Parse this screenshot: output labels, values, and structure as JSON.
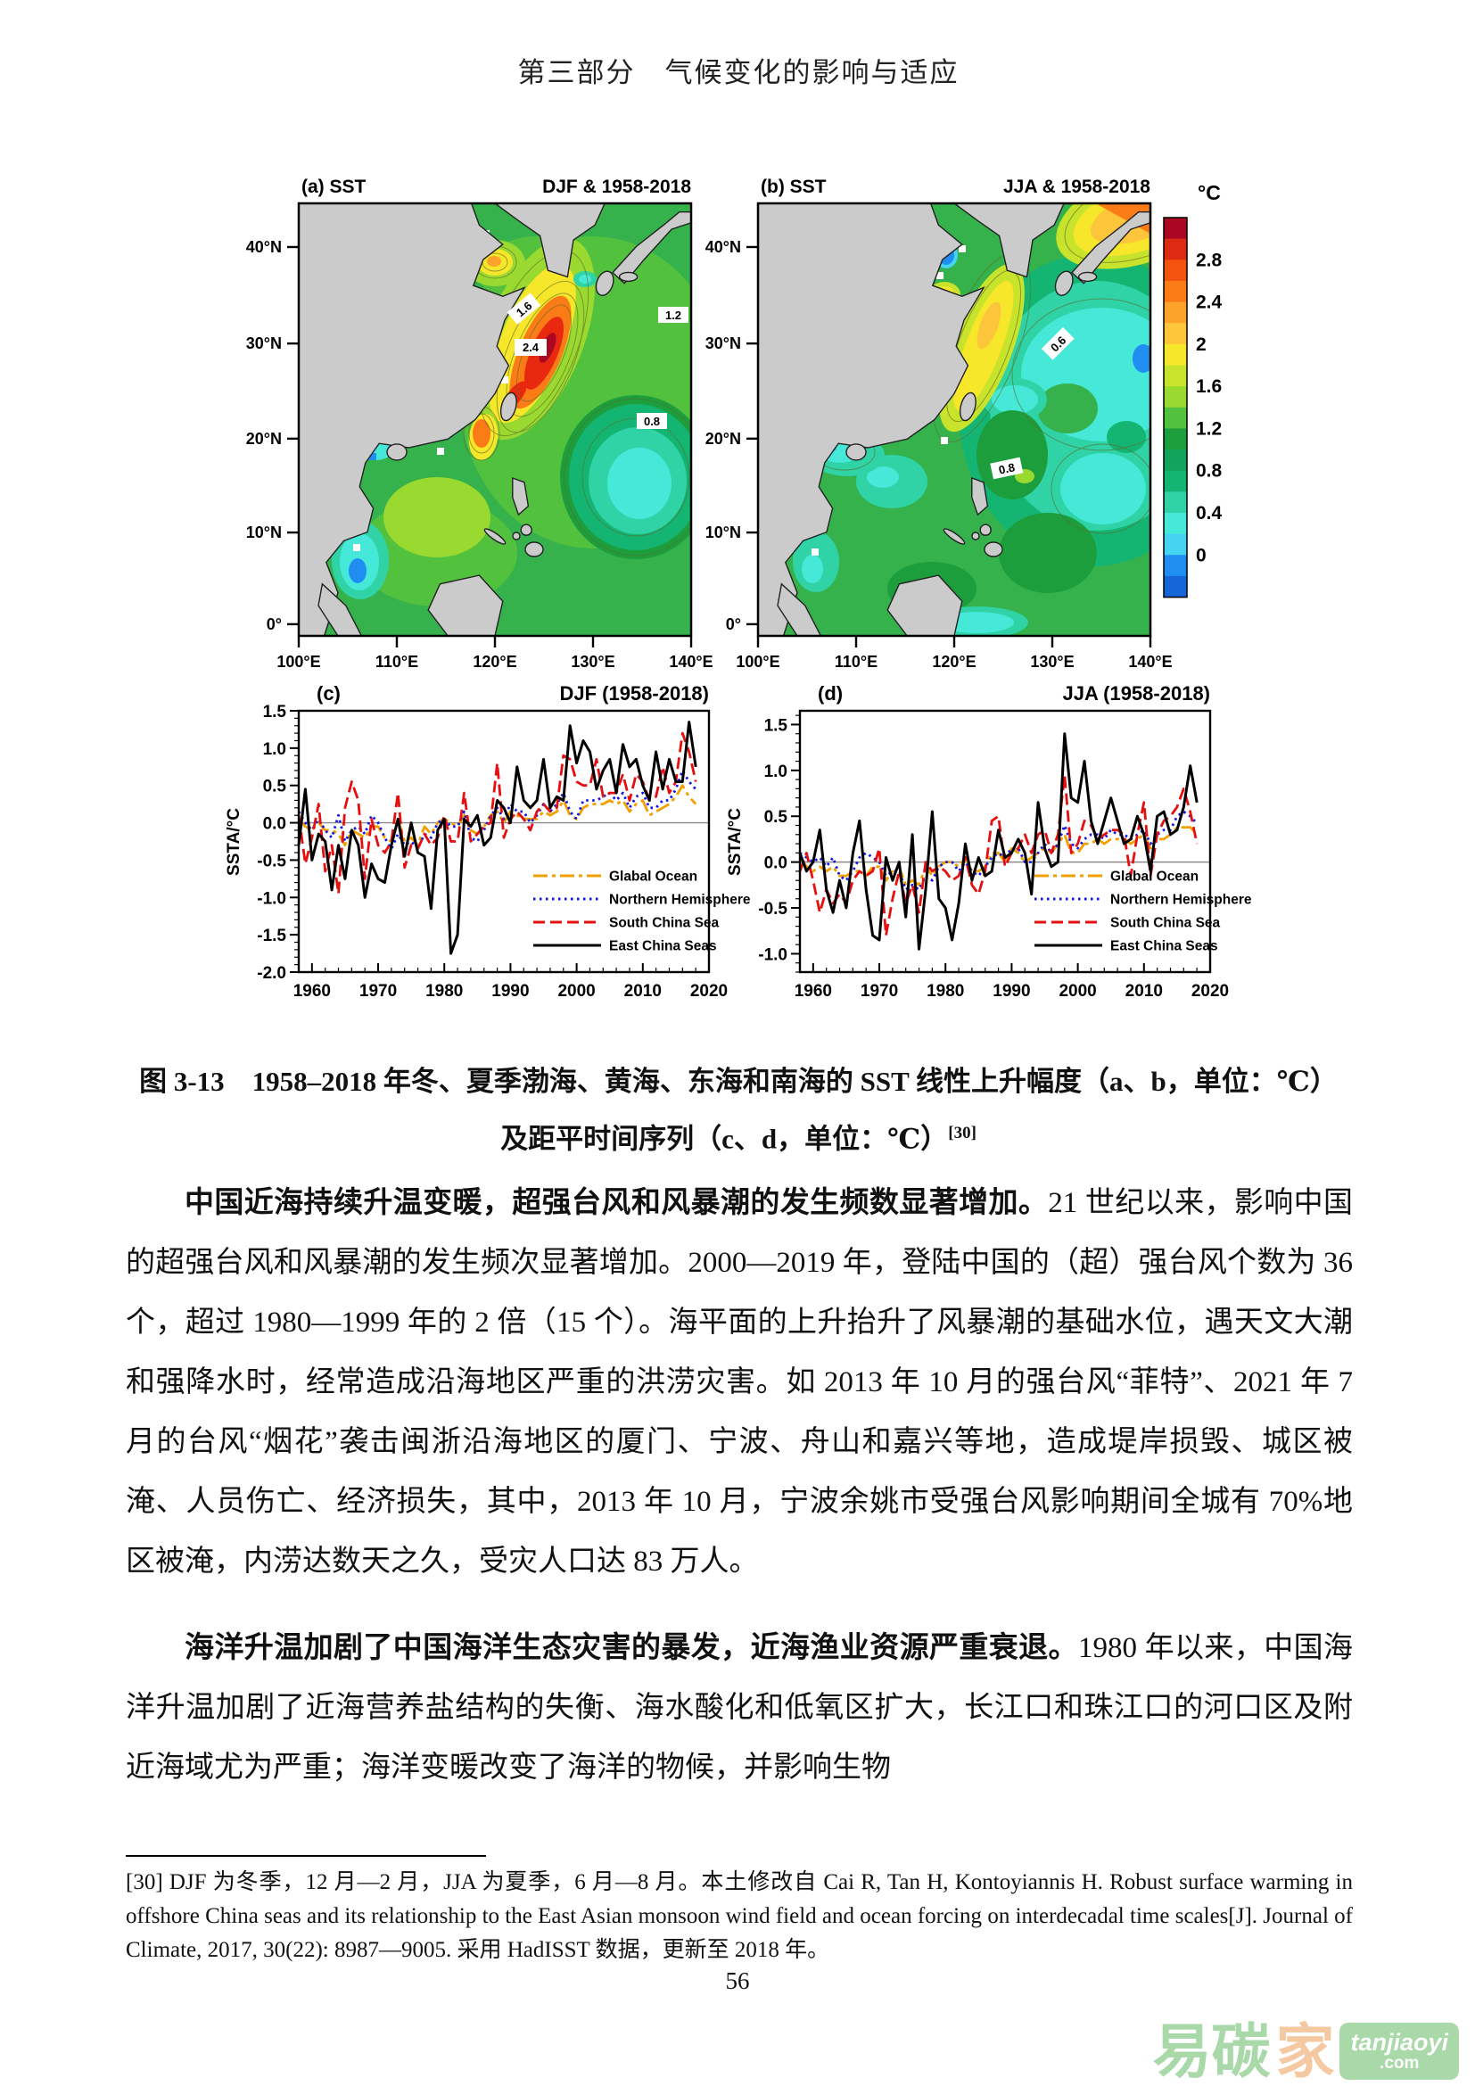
{
  "header": {
    "text": "第三部分　气候变化的影响与适应"
  },
  "figure": {
    "map_a": {
      "label": "(a) SST",
      "season": "DJF & 1958-2018",
      "contours": [
        "1.6",
        "2.4",
        "1.2",
        "0.8"
      ]
    },
    "map_b": {
      "label": "(b) SST",
      "season": "JJA & 1958-2018",
      "contours": [
        "0.6",
        "0.8"
      ]
    },
    "lat_ticks": [
      "40°N",
      "30°N",
      "20°N",
      "10°N",
      "0°"
    ],
    "lon_ticks": [
      "100°E",
      "110°E",
      "120°E",
      "130°E",
      "140°E"
    ],
    "colorbar": {
      "unit": "°C",
      "labels": [
        "2.8",
        "2.4",
        "2",
        "1.6",
        "1.2",
        "0.8",
        "0.4",
        "0"
      ],
      "colors": [
        "#aa0822",
        "#dd2a12",
        "#f4530e",
        "#fb7b17",
        "#fca32b",
        "#fdc53a",
        "#f7e72b",
        "#c8e32c",
        "#9ad92f",
        "#52c13e",
        "#1d9e3d",
        "#12a45c",
        "#14b573",
        "#2fd3a6",
        "#46e8d8",
        "#45d3f2",
        "#1f8ef0",
        "#1565d8"
      ]
    }
  },
  "chart_data": [
    {
      "type": "line",
      "panel_label": "(c)",
      "title": "DJF (1958-2018)",
      "ylabel": "SSTA/°C",
      "x_start": 1958,
      "xlim": [
        1958,
        2020
      ],
      "ylim": [
        -2.0,
        1.5
      ],
      "x_ticks": [
        1960,
        1970,
        1980,
        1990,
        2000,
        2010,
        2020
      ],
      "y_ticks": [
        1.5,
        1.0,
        0.5,
        0.0,
        -0.5,
        -1.0,
        -1.5,
        -2.0
      ],
      "legend": [
        {
          "name": "Glabal Ocean",
          "color": "#f0a000",
          "style": "dashdot"
        },
        {
          "name": "Northern Hemisphere",
          "color": "#1414e6",
          "style": "dotted"
        },
        {
          "name": "South China Sea",
          "color": "#e60f0f",
          "style": "dashed"
        },
        {
          "name": "East China Seas",
          "color": "#000000",
          "style": "solid"
        }
      ],
      "series": [
        {
          "name": "Glabal Ocean",
          "values": [
            0.05,
            -0.05,
            -0.1,
            0,
            -0.1,
            -0.1,
            -0.15,
            -0.3,
            -0.1,
            -0.15,
            -0.2,
            -0.05,
            -0.05,
            -0.2,
            -0.25,
            0.05,
            -0.25,
            -0.2,
            -0.3,
            -0.05,
            -0.15,
            0,
            0.05,
            0,
            -0.05,
            0.1,
            -0.1,
            -0.15,
            -0.05,
            0.1,
            0.15,
            0,
            0.15,
            0.1,
            0.05,
            0.05,
            0.05,
            0.15,
            0.1,
            0.15,
            0.3,
            0.1,
            0.05,
            0.2,
            0.25,
            0.25,
            0.25,
            0.3,
            0.25,
            0.3,
            0.15,
            0.25,
            0.3,
            0.1,
            0.15,
            0.2,
            0.25,
            0.35,
            0.5,
            0.35,
            0.25
          ]
        },
        {
          "name": "Northern Hemisphere",
          "values": [
            0.15,
            0,
            -0.1,
            0.05,
            -0.1,
            -0.2,
            0.1,
            -0.25,
            -0.1,
            -0.05,
            -0.15,
            0.1,
            0,
            -0.2,
            -0.35,
            -0.15,
            -0.3,
            -0.25,
            -0.35,
            -0.15,
            -0.2,
            0,
            0.05,
            -0.05,
            -0.05,
            0.15,
            -0.2,
            -0.25,
            -0.1,
            0.1,
            0.2,
            0.05,
            0.25,
            0.15,
            0.15,
            0,
            0.1,
            0.25,
            0.15,
            0.25,
            0.4,
            0.15,
            0.05,
            0.3,
            0.3,
            0.3,
            0.35,
            0.4,
            0.3,
            0.4,
            0.2,
            0.35,
            0.4,
            0.2,
            0.2,
            0.3,
            0.3,
            0.45,
            0.7,
            0.55,
            0.45
          ]
        },
        {
          "name": "South China Sea",
          "values": [
            0.1,
            -0.55,
            -0.2,
            0.25,
            -0.65,
            -0.3,
            -0.95,
            0.2,
            0.55,
            0.3,
            -0.75,
            0.05,
            -0.3,
            -0.4,
            -0.25,
            0.4,
            -0.6,
            -0.3,
            -0.35,
            -0.15,
            -0.3,
            -0.2,
            0.1,
            -0.25,
            -0.25,
            0.4,
            -0.25,
            -0.15,
            -0.05,
            0,
            0.8,
            -0.2,
            0.05,
            0.15,
            0.05,
            -0.1,
            0.15,
            0.25,
            0.15,
            0.2,
            0.9,
            0.85,
            0.55,
            0.5,
            0.5,
            0.85,
            0.35,
            0.4,
            0.4,
            0.65,
            0.3,
            0.65,
            0.55,
            0.3,
            0.35,
            0.75,
            0.4,
            0.55,
            1.2,
            0.95,
            0.55
          ]
        },
        {
          "name": "East China Seas",
          "values": [
            -0.3,
            0.45,
            -0.5,
            -0.15,
            -0.25,
            -0.9,
            -0.3,
            -0.75,
            -0.1,
            -0.3,
            -1.0,
            -0.55,
            -0.75,
            -0.8,
            -0.3,
            0.05,
            -0.45,
            0,
            -0.4,
            -0.45,
            -1.15,
            -0.1,
            0.05,
            -1.75,
            -1.5,
            0.05,
            -0.05,
            0.1,
            -0.3,
            -0.2,
            0.3,
            0.2,
            0,
            0.75,
            0.3,
            0.2,
            0.3,
            0.85,
            0.2,
            0.35,
            0.3,
            1.3,
            0.8,
            1.1,
            0.95,
            0.45,
            0.7,
            0.85,
            0.4,
            1.05,
            0.75,
            0.85,
            0.5,
            0.3,
            0.95,
            0.45,
            0.85,
            0.55,
            0.55,
            1.35,
            0.75
          ]
        }
      ]
    },
    {
      "type": "line",
      "panel_label": "(d)",
      "title": "JJA (1958-2018)",
      "ylabel": "SSTA/°C",
      "x_start": 1958,
      "xlim": [
        1958,
        2020
      ],
      "ylim": [
        -1.2,
        1.65
      ],
      "x_ticks": [
        1960,
        1970,
        1980,
        1990,
        2000,
        2010,
        2020
      ],
      "y_ticks": [
        1.5,
        1.0,
        0.5,
        0.0,
        -0.5,
        -1.0
      ],
      "legend": [
        {
          "name": "Glabal Ocean",
          "color": "#f0a000",
          "style": "dashdot"
        },
        {
          "name": "Northern Hemisphere",
          "color": "#1414e6",
          "style": "dotted"
        },
        {
          "name": "South China Sea",
          "color": "#e60f0f",
          "style": "dashed"
        },
        {
          "name": "East China Seas",
          "color": "#000000",
          "style": "solid"
        }
      ],
      "series": [
        {
          "name": "Glabal Ocean",
          "values": [
            0.05,
            -0.05,
            -0.1,
            -0.05,
            -0.1,
            -0.05,
            -0.15,
            -0.15,
            -0.1,
            -0.1,
            -0.15,
            -0.05,
            -0.05,
            -0.2,
            -0.1,
            -0.05,
            -0.25,
            -0.2,
            -0.25,
            -0.05,
            -0.15,
            -0.05,
            0,
            0,
            -0.05,
            0.05,
            -0.1,
            -0.1,
            -0.05,
            0.1,
            0.1,
            0,
            0.15,
            0.1,
            0,
            0.05,
            0.1,
            0.15,
            0.1,
            0.2,
            0.3,
            0.1,
            0.1,
            0.2,
            0.2,
            0.25,
            0.2,
            0.25,
            0.25,
            0.25,
            0.2,
            0.25,
            0.3,
            0.15,
            0.25,
            0.25,
            0.3,
            0.38,
            0.38,
            0.38,
            0.3
          ]
        },
        {
          "name": "Northern Hemisphere",
          "values": [
            0.1,
            0.05,
            0,
            0.05,
            -0.05,
            0.05,
            -0.15,
            -0.2,
            -0.1,
            0.05,
            0.1,
            0.05,
            0,
            -0.15,
            -0.1,
            -0.1,
            -0.3,
            -0.25,
            -0.3,
            -0.15,
            -0.2,
            -0.05,
            0,
            0,
            -0.1,
            0,
            -0.1,
            -0.15,
            -0.05,
            0.05,
            0.1,
            0.05,
            0.15,
            0.15,
            0,
            0,
            0.1,
            0.2,
            0.1,
            0.2,
            0.4,
            0.2,
            0.15,
            0.25,
            0.3,
            0.3,
            0.25,
            0.35,
            0.3,
            0.3,
            0.25,
            0.3,
            0.35,
            0.2,
            0.3,
            0.35,
            0.35,
            0.5,
            0.55,
            0.5,
            0.42
          ]
        },
        {
          "name": "South China Sea",
          "values": [
            -0.1,
            0.1,
            -0.2,
            -0.55,
            -0.3,
            -0.45,
            -0.35,
            -0.45,
            -0.2,
            -0.1,
            -0.15,
            -0.1,
            0.15,
            -0.8,
            -0.4,
            -0.1,
            -0.45,
            -0.25,
            -0.55,
            0,
            -0.1,
            -0.05,
            -0.1,
            -0.2,
            -0.15,
            0.05,
            -0.25,
            -0.35,
            -0.1,
            0.45,
            0.5,
            -0.05,
            0.1,
            0.15,
            0.3,
            0.1,
            0.3,
            0.35,
            0.1,
            0.3,
            0.95,
            0.1,
            0.2,
            0.45,
            0.4,
            0.25,
            0.3,
            0.35,
            0.35,
            0.3,
            -0.15,
            0.3,
            0.65,
            -0.15,
            0.3,
            0.45,
            0.5,
            0.6,
            0.8,
            0.55,
            0.2
          ]
        },
        {
          "name": "East China Seas",
          "values": [
            0.1,
            -0.1,
            0,
            0.35,
            -0.3,
            -0.55,
            -0.2,
            -0.5,
            0.1,
            0.45,
            -0.3,
            -0.8,
            -0.85,
            0.05,
            -0.2,
            0,
            -0.6,
            0.3,
            -0.95,
            -0.3,
            0.55,
            -0.4,
            -0.5,
            -0.85,
            -0.45,
            0.2,
            -0.2,
            0.05,
            -0.15,
            -0.1,
            0.35,
            0.05,
            0.1,
            0.25,
            0.1,
            -0.35,
            0.65,
            0.15,
            -0.05,
            0,
            1.4,
            0.7,
            0.65,
            1.1,
            0.45,
            0.2,
            0.45,
            0.7,
            0.45,
            0.2,
            0.25,
            0.5,
            0.3,
            -0.1,
            0.5,
            0.55,
            0.3,
            0.35,
            0.6,
            1.05,
            0.65
          ]
        }
      ]
    }
  ],
  "caption": {
    "line1": "图 3-13　1958–2018 年冬、夏季渤海、黄海、东海和南海的 SST 线性上升幅度（a、b，单位：℃）",
    "line2": "及距平时间序列（c、d，单位：℃）",
    "ref": "[30]"
  },
  "paragraphs": [
    {
      "segments": [
        {
          "text": "中国近海持续升温变暖，超强台风和风暴潮的发生频数显著增加。",
          "bold": true
        },
        {
          "text": "21 世纪以来，影响中国的超强台风和风暴潮的发生频次显著增加。2000—2019 年，登陆中国的（超）强台风个数为 36 个，超过 1980—1999 年的 2 倍（15 个）。海平面的上升抬升了风暴潮的基础水位，遇天文大潮和强降水时，经常造成沿海地区严重的洪涝灾害。如 2013 年 10 月的强台风“菲特”、2021 年 7 月的台风“烟花”袭击闽浙沿海地区的厦门、宁波、舟山和嘉兴等地，造成堤岸损毁、城区被淹、人员伤亡、经济损失，其中，2013 年 10 月，宁波余姚市受强台风影响期间全城有 70%地区被淹，内涝达数天之久，受灾人口达 83 万人。",
          "bold": false
        }
      ]
    },
    {
      "segments": [
        {
          "text": "海洋升温加剧了中国海洋生态灾害的暴发，近海渔业资源严重衰退。",
          "bold": true
        },
        {
          "text": "1980 年以来，中国海洋升温加剧了近海营养盐结构的失衡、海水酸化和低氧区扩大，长江口和珠江口的河口区及附近海域尤为严重；海洋变暖改变了海洋的物候，并影响生物",
          "bold": false
        }
      ]
    }
  ],
  "footnote": {
    "text": "[30] DJF 为冬季，12 月—2 月，JJA 为夏季，6 月—8 月。本土修改自 Cai R, Tan H, Kontoyiannis H. Robust surface warming in offshore China seas and its relationship to the East Asian monsoon wind field and ocean forcing on interdecadal time scales[J]. Journal of Climate, 2017, 30(22): 8987—9005. 采用 HadISST 数据，更新至 2018 年。"
  },
  "page_number": "56",
  "watermark": {
    "part1": "易碳",
    "part2": "家",
    "badge_line1": "tanjiaoyi",
    "badge_line2": ".com",
    "green": "#a5d6a5",
    "orange": "#f4c79e"
  }
}
